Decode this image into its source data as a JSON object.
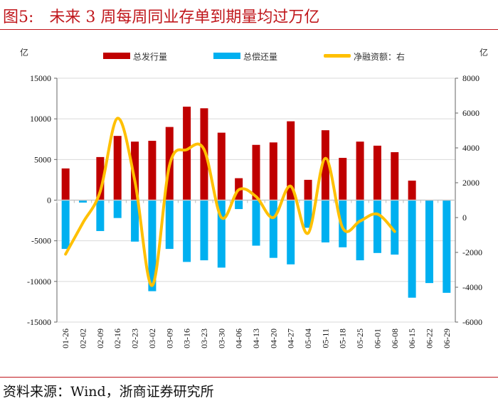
{
  "title": "图5:　未来 3 周每周同业存单到期量均过万亿",
  "source": "资料来源：Wind，浙商证券研究所",
  "chart_data": {
    "type": "bar+line",
    "left_unit": "亿",
    "right_unit": "亿",
    "categories": [
      "01-26",
      "02-02",
      "02-09",
      "02-16",
      "02-23",
      "03-02",
      "03-09",
      "03-16",
      "03-23",
      "03-30",
      "04-06",
      "04-13",
      "04-20",
      "04-27",
      "05-04",
      "05-11",
      "05-18",
      "05-25",
      "06-01",
      "06-08",
      "06-15",
      "06-22",
      "06-29"
    ],
    "ylim_left": [
      -15000,
      15000
    ],
    "yticks_left": [
      -15000,
      -10000,
      -5000,
      0,
      5000,
      10000,
      15000
    ],
    "ylim_right": [
      -6000,
      8000
    ],
    "yticks_right": [
      -6000,
      -4000,
      -2000,
      0,
      2000,
      4000,
      6000,
      8000
    ],
    "grid": true,
    "legend_position": "top",
    "series": [
      {
        "name": "总发行量",
        "type": "bar",
        "axis": "left",
        "color": "#c00000",
        "values": [
          3900,
          0,
          5300,
          7900,
          7200,
          7300,
          9000,
          11500,
          11300,
          8300,
          2700,
          6800,
          7100,
          9700,
          2500,
          8600,
          5200,
          7200,
          6700,
          5900,
          2400,
          null,
          null
        ]
      },
      {
        "name": "总偿还量",
        "type": "bar",
        "axis": "left",
        "color": "#00b0f0",
        "values": [
          -6000,
          -300,
          -3800,
          -2200,
          -5100,
          -11200,
          -6000,
          -7600,
          -7400,
          -8300,
          -1100,
          -5600,
          -7100,
          -7900,
          -3400,
          -5200,
          -5800,
          -7400,
          -6500,
          -6700,
          -12000,
          -10200,
          -11400
        ]
      },
      {
        "name": "净融资额：右",
        "type": "line",
        "axis": "right",
        "color": "#ffc000",
        "values": [
          -2100,
          -300,
          1500,
          5700,
          2100,
          -3900,
          3000,
          3900,
          3900,
          0,
          1600,
          1200,
          0,
          1800,
          -900,
          3400,
          -600,
          -200,
          200,
          -800,
          null,
          null,
          null
        ]
      }
    ]
  }
}
